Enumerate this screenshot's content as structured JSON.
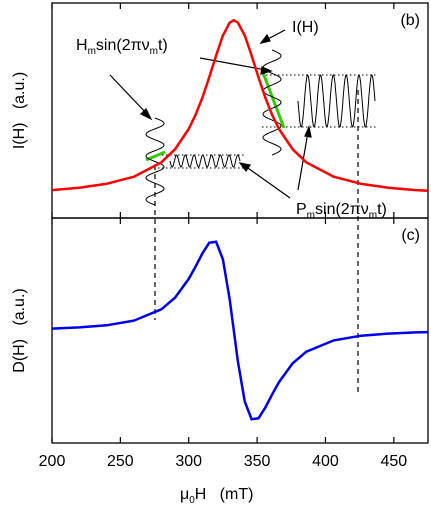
{
  "chart_data": [
    {
      "type": "line",
      "panel_label": "(b)",
      "y_label": "I(H)   (a.u.)",
      "annotations": [
        {
          "parts": [
            "I(H)"
          ]
        },
        {
          "parts": [
            "H",
            "m",
            "sin(2πν",
            "m",
            "t)"
          ]
        },
        {
          "parts": [
            "P",
            "m",
            "sin(2πν",
            "m",
            "t)"
          ]
        }
      ],
      "x": [
        200,
        220,
        240,
        260,
        280,
        290,
        300,
        305,
        310,
        315,
        320,
        325,
        330,
        333,
        336,
        341,
        346,
        351,
        356,
        361,
        366,
        376,
        386,
        406,
        426,
        446,
        466,
        475
      ],
      "values": [
        0.13,
        0.141,
        0.159,
        0.192,
        0.259,
        0.32,
        0.414,
        0.48,
        0.56,
        0.654,
        0.756,
        0.849,
        0.909,
        0.92,
        0.909,
        0.849,
        0.756,
        0.654,
        0.56,
        0.48,
        0.414,
        0.32,
        0.259,
        0.192,
        0.159,
        0.141,
        0.13,
        0.127
      ],
      "color": "#ff0000",
      "xlim": [
        200,
        475
      ],
      "ylim": [
        0,
        1
      ],
      "xticks": [
        200,
        250,
        300,
        350,
        400,
        450
      ]
    },
    {
      "type": "line",
      "panel_label": "(c)",
      "y_label": "D(H)   (a.u.)",
      "x_label_parts": [
        "μ",
        "0",
        "H   (mT)"
      ],
      "x": [
        200,
        220,
        240,
        260,
        280,
        290,
        300,
        305,
        310,
        315,
        320,
        325,
        330,
        333,
        336,
        341,
        346,
        351,
        356,
        361,
        366,
        376,
        386,
        406,
        426,
        446,
        466,
        475
      ],
      "values": [
        0.021,
        0.034,
        0.058,
        0.11,
        0.236,
        0.365,
        0.573,
        0.711,
        0.857,
        0.975,
        0.986,
        0.791,
        0.346,
        0,
        -0.346,
        -0.791,
        -0.986,
        -0.975,
        -0.857,
        -0.711,
        -0.573,
        -0.365,
        -0.236,
        -0.11,
        -0.058,
        -0.034,
        -0.021,
        -0.018
      ],
      "color": "#0000ee",
      "xlim": [
        200,
        475
      ],
      "ylim": [
        -1.25,
        1.25
      ],
      "xticks": [
        200,
        250,
        300,
        350,
        400,
        450
      ]
    }
  ]
}
